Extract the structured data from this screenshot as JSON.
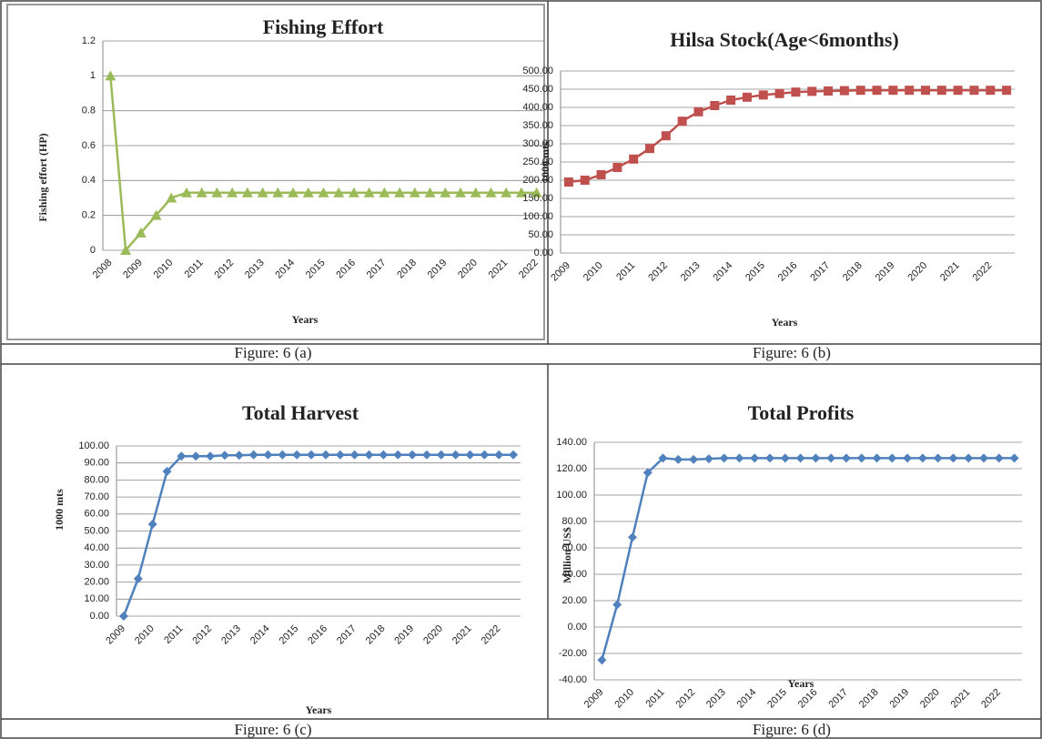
{
  "chart_data": [
    {
      "type": "line",
      "title": "Fishing Effort",
      "caption": "Figure: 6 (a)",
      "x_label": "Years",
      "y_label": "Fishing effort (HP)",
      "categories": [
        "2008",
        null,
        "2009",
        null,
        "2010",
        null,
        "2011",
        null,
        "2012",
        null,
        "2013",
        null,
        "2014",
        null,
        "2015",
        null,
        "2016",
        null,
        "2017",
        null,
        "2018",
        null,
        "2019",
        null,
        "2020",
        null,
        "2021",
        null,
        "2022"
      ],
      "series": [
        {
          "name": "Fishing effort",
          "color": "#9bbb59",
          "marker": "triangle",
          "values": [
            1,
            0,
            0.1,
            0.2,
            0.3,
            0.33,
            0.33,
            0.33,
            0.33,
            0.33,
            0.33,
            0.33,
            0.33,
            0.33,
            0.33,
            0.33,
            0.33,
            0.33,
            0.33,
            0.33,
            0.33,
            0.33,
            0.33,
            0.33,
            0.33,
            0.33,
            0.33,
            0.33,
            0.33
          ]
        }
      ],
      "ylim": [
        0,
        1.2
      ],
      "yticks": [
        0,
        0.2,
        0.4,
        0.6,
        0.8,
        1,
        1.2
      ],
      "grid": true
    },
    {
      "type": "line",
      "title": "Hilsa Stock(Age<6months)",
      "caption": "Figure: 6 (b)",
      "x_label": "Years",
      "y_label": "1000 mts",
      "categories": [
        "2009",
        null,
        "2010",
        null,
        "2011",
        null,
        "2012",
        null,
        "2013",
        null,
        "2014",
        null,
        "2015",
        null,
        "2016",
        null,
        "2017",
        null,
        "2018",
        null,
        "2019",
        null,
        "2020",
        null,
        "2021",
        null,
        "2022",
        null
      ],
      "series": [
        {
          "name": "Hilsa stock",
          "color": "#c0504d",
          "marker": "square",
          "values": [
            195,
            200,
            215,
            235,
            258,
            287,
            322,
            362,
            388,
            405,
            420,
            428,
            434,
            438,
            442,
            444,
            445,
            446,
            447,
            447,
            447,
            447,
            447,
            447,
            447,
            447,
            447,
            447
          ]
        }
      ],
      "ylim": [
        0,
        500
      ],
      "yticks": [
        {
          "value": 0,
          "label": "0.00"
        },
        {
          "value": 50,
          "label": "50.00"
        },
        {
          "value": 100,
          "label": "100.00"
        },
        {
          "value": 150,
          "label": "150.00"
        },
        {
          "value": 200,
          "label": "200.00"
        },
        {
          "value": 250,
          "label": "250.00"
        },
        {
          "value": 300,
          "label": "300.00"
        },
        {
          "value": 350,
          "label": "350.00"
        },
        {
          "value": 400,
          "label": "400.00"
        },
        {
          "value": 450,
          "label": "450.00"
        },
        {
          "value": 500,
          "label": "500.00"
        }
      ],
      "grid": true
    },
    {
      "type": "line",
      "title": "Total Harvest",
      "caption": "Figure: 6 (c)",
      "x_label": "Years",
      "y_label": "1000 mts",
      "categories": [
        "2009",
        null,
        "2010",
        null,
        "2011",
        null,
        "2012",
        null,
        "2013",
        null,
        "2014",
        null,
        "2015",
        null,
        "2016",
        null,
        "2017",
        null,
        "2018",
        null,
        "2019",
        null,
        "2020",
        null,
        "2021",
        null,
        "2022",
        null
      ],
      "series": [
        {
          "name": "Total harvest",
          "color": "#4f81bd",
          "marker": "diamond",
          "values": [
            0,
            22,
            54,
            85,
            94,
            94,
            94,
            94.5,
            94.5,
            94.8,
            94.8,
            94.8,
            94.8,
            94.8,
            94.8,
            94.8,
            94.8,
            94.8,
            94.8,
            94.8,
            94.8,
            94.8,
            94.8,
            94.8,
            94.8,
            94.8,
            94.8,
            94.8
          ]
        }
      ],
      "ylim": [
        0,
        100
      ],
      "yticks": [
        {
          "value": 0,
          "label": "0.00"
        },
        {
          "value": 10,
          "label": "10.00"
        },
        {
          "value": 20,
          "label": "20.00"
        },
        {
          "value": 30,
          "label": "30.00"
        },
        {
          "value": 40,
          "label": "40.00"
        },
        {
          "value": 50,
          "label": "50.00"
        },
        {
          "value": 60,
          "label": "60.00"
        },
        {
          "value": 70,
          "label": "70.00"
        },
        {
          "value": 80,
          "label": "80.00"
        },
        {
          "value": 90,
          "label": "90.00"
        },
        {
          "value": 100,
          "label": "100.00"
        }
      ],
      "grid": true
    },
    {
      "type": "line",
      "title": "Total Profits",
      "caption": "Figure: 6 (d)",
      "x_label": "Years",
      "y_label": "Million US$",
      "categories": [
        "2009",
        null,
        "2010",
        null,
        "2011",
        null,
        "2012",
        null,
        "2013",
        null,
        "2014",
        null,
        "2015",
        null,
        "2016",
        null,
        "2017",
        null,
        "2018",
        null,
        "2019",
        null,
        "2020",
        null,
        "2021",
        null,
        "2022",
        null
      ],
      "series": [
        {
          "name": "Total profits",
          "color": "#4f81bd",
          "marker": "diamond",
          "values": [
            -25,
            17,
            68,
            117,
            128,
            127,
            127,
            127.5,
            128,
            128,
            128,
            128,
            128,
            128,
            128,
            128,
            128,
            128,
            128,
            128,
            128,
            128,
            128,
            128,
            128,
            128,
            128,
            128
          ]
        }
      ],
      "ylim": [
        -40,
        140
      ],
      "yticks": [
        {
          "value": -40,
          "label": "-40.00"
        },
        {
          "value": -20,
          "label": "-20.00"
        },
        {
          "value": 0,
          "label": "0.00"
        },
        {
          "value": 20,
          "label": "20.00"
        },
        {
          "value": 40,
          "label": "40.00"
        },
        {
          "value": 60,
          "label": "60.00"
        },
        {
          "value": 80,
          "label": "80.00"
        },
        {
          "value": 100,
          "label": "100.00"
        },
        {
          "value": 120,
          "label": "120.00"
        },
        {
          "value": 140,
          "label": "140.00"
        }
      ],
      "grid": true
    }
  ]
}
